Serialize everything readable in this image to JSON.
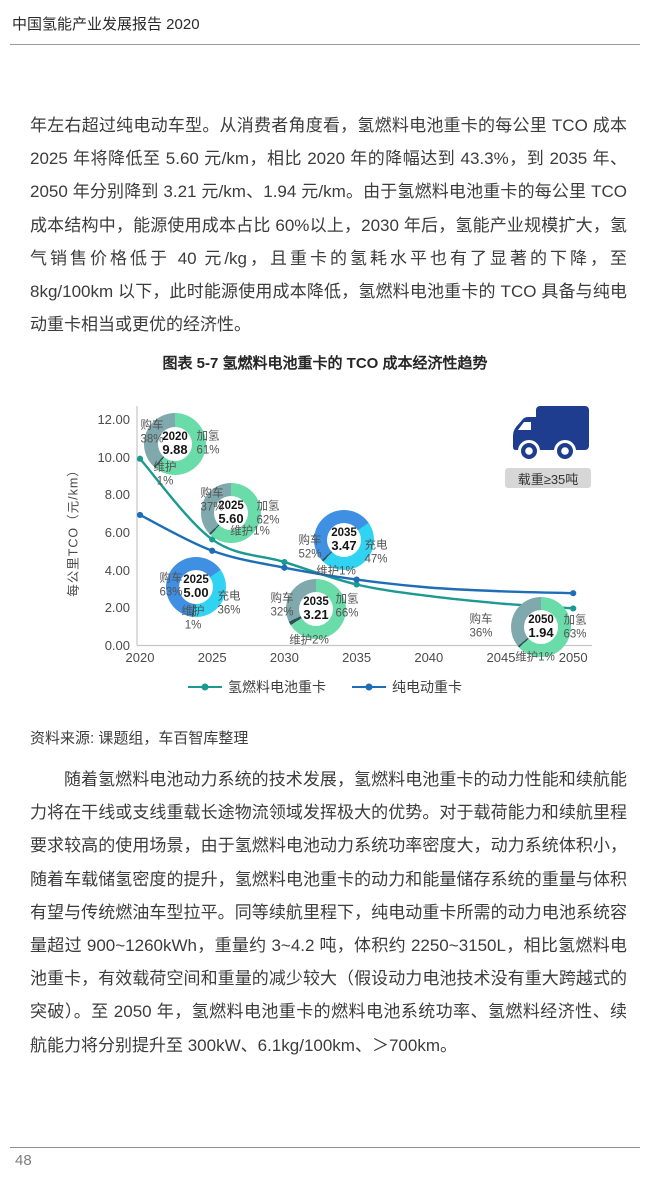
{
  "header": {
    "title": "中国氢能产业发展报告 2020"
  },
  "paragraphs": {
    "p1": "年左右超过纯电动车型。从消费者角度看，氢燃料电池重卡的每公里 TCO 成本 2025 年将降低至 5.60 元/km，相比 2020 年的降幅达到 43.3%，到 2035 年、2050 年分别降到 3.21 元/km、1.94 元/km。由于氢燃料电池重卡的每公里 TCO 成本结构中，能源使用成本占比 60%以上，2030 年后，氢能产业规模扩大，氢气销售价格低于 40 元/kg，且重卡的氢耗水平也有了显著的下降，至 8kg/100km 以下，此时能源使用成本降低，氢燃料电池重卡的 TCO 具备与纯电动重卡相当或更优的经济性。",
    "p2": "随着氢燃料电池动力系统的技术发展，氢燃料电池重卡的动力性能和续航能力将在干线或支线重载长途物流领域发挥极大的优势。对于载荷能力和续航里程要求较高的使用场景，由于氢燃料电池动力系统功率密度大，动力系统体积小，随着车载储氢密度的提升，氢燃料电池重卡的动力和能量储存系统的重量与体积有望与传统燃油车型拉平。同等续航里程下，纯电动重卡所需的动力电池系统容量超过 900~1260kWh，重量约 3~4.2 吨，体积约 2250~3150L，相比氢燃料电池重卡，有效载荷空间和重量的减少较大（假设动力电池技术没有重大跨越式的突破）。至 2050 年，氢燃料电池重卡的燃料电池系统功率、氢燃料经济性、续航能力将分别提升至 300kW、6.1kg/100km、＞700km。"
  },
  "figure": {
    "source": "资料来源: 课题组，车百智库整理"
  },
  "chart_data": {
    "type": "line",
    "title": "图表 5-7 氢燃料电池重卡的 TCO 成本经济性趋势",
    "ylabel": "每公里TCO（元/km）",
    "xlabel": "",
    "x": [
      2020,
      2025,
      2030,
      2035,
      2040,
      2045,
      2050
    ],
    "x_ticks": [
      "2020",
      "2025",
      "2030",
      "2035",
      "2040",
      "2045",
      "2050"
    ],
    "y_ticks": [
      "12.00",
      "10.00",
      "8.00",
      "6.00",
      "4.00",
      "2.00",
      "0.00"
    ],
    "ylim": [
      0,
      12
    ],
    "grid": false,
    "legend_position": "bottom",
    "truck_badge": "载重≥35吨",
    "series": [
      {
        "name": "氢燃料电池重卡",
        "color": "#1b9a91",
        "values": [
          9.88,
          5.6,
          4.4,
          3.21,
          2.6,
          2.2,
          1.94
        ],
        "marker_years": [
          2020,
          2025,
          2030,
          2035,
          2050
        ]
      },
      {
        "name": "纯电动重卡",
        "color": "#1e6db6",
        "values": [
          6.9,
          5.0,
          4.1,
          3.47,
          3.05,
          2.85,
          2.75
        ],
        "marker_years": [
          2020,
          2025,
          2030,
          2035,
          2050
        ]
      }
    ],
    "donuts": [
      {
        "year": "2020",
        "value": "9.88",
        "type": "h2",
        "left": {
          "label": "购车",
          "pct": "38%"
        },
        "right": {
          "label": "加氢",
          "pct": "61%"
        },
        "bottom": {
          "label": "维护",
          "pct": "1%"
        }
      },
      {
        "year": "2025",
        "value": "5.60",
        "type": "h2",
        "left": {
          "label": "购车",
          "pct": "37%"
        },
        "right": {
          "label": "加氢",
          "pct": "62%"
        },
        "bottom": {
          "label": "维护",
          "pct": "1%"
        }
      },
      {
        "year": "2025",
        "value": "5.00",
        "type": "ev",
        "left": {
          "label": "购车",
          "pct": "63%"
        },
        "right": {
          "label": "充电",
          "pct": "36%"
        },
        "bottom": {
          "label": "维护",
          "pct": "1%"
        }
      },
      {
        "year": "2035",
        "value": "3.47",
        "type": "ev",
        "left": {
          "label": "购车",
          "pct": "52%"
        },
        "right": {
          "label": "充电",
          "pct": "47%"
        },
        "bottom": {
          "label": "维护",
          "pct": "1%"
        }
      },
      {
        "year": "2035",
        "value": "3.21",
        "type": "h2",
        "left": {
          "label": "购车",
          "pct": "32%"
        },
        "right": {
          "label": "加氢",
          "pct": "66%"
        },
        "bottom": {
          "label": "维护",
          "pct": "2%"
        }
      },
      {
        "year": "2050",
        "value": "1.94",
        "type": "h2",
        "left": {
          "label": "购车",
          "pct": "36%"
        },
        "right": {
          "label": "加氢",
          "pct": "63%"
        },
        "bottom": {
          "label": "维护",
          "pct": "1%"
        }
      }
    ],
    "colors": {
      "h2_line": "#1b9a91",
      "ev_line": "#1e6db6",
      "slice_h2_refuel": "#6adca9",
      "slice_h2_purchase": "#7fa9ad",
      "slice_ev_purchase": "#3f8fe3",
      "slice_ev_charge": "#31d3f2",
      "slice_maintain": "#2f5056",
      "truck": "#1e3d8f",
      "axis": "#c6c6c6"
    }
  },
  "footer": {
    "page_number": "48"
  }
}
